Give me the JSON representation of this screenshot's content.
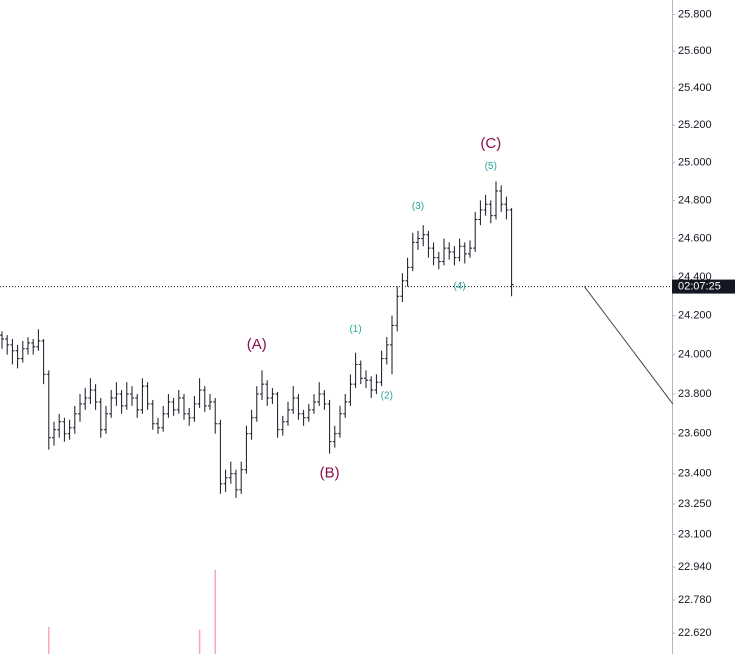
{
  "chart_data": {
    "type": "ohlc",
    "log_scale": true,
    "ylim": [
      22.52,
      25.88
    ],
    "yticks": [
      {
        "value": 25.8,
        "label": "25.800"
      },
      {
        "value": 25.6,
        "label": "25.600"
      },
      {
        "value": 25.4,
        "label": "25.400"
      },
      {
        "value": 25.2,
        "label": "25.200"
      },
      {
        "value": 25.0,
        "label": "25.000"
      },
      {
        "value": 24.8,
        "label": "24.800"
      },
      {
        "value": 24.6,
        "label": "24.600"
      },
      {
        "value": 24.4,
        "label": "24.400"
      },
      {
        "value": 24.2,
        "label": "24.200"
      },
      {
        "value": 24.0,
        "label": "24.000"
      },
      {
        "value": 23.8,
        "label": "23.800"
      },
      {
        "value": 23.6,
        "label": "23.600"
      },
      {
        "value": 23.4,
        "label": "23.400"
      },
      {
        "value": 23.25,
        "label": "23.250"
      },
      {
        "value": 23.1,
        "label": "23.100"
      },
      {
        "value": 22.94,
        "label": "22.940"
      },
      {
        "value": 22.78,
        "label": "22.780"
      },
      {
        "value": 22.62,
        "label": "22.620"
      }
    ],
    "color": "#131722",
    "ohlc": [
      [
        24.1,
        24.12,
        24.03,
        24.08
      ],
      [
        24.08,
        24.1,
        24.0,
        24.05
      ],
      [
        24.05,
        24.08,
        23.95,
        24.02
      ],
      [
        24.02,
        24.05,
        23.93,
        23.98
      ],
      [
        23.98,
        24.07,
        23.96,
        24.03
      ],
      [
        24.03,
        24.09,
        24.0,
        24.06
      ],
      [
        24.06,
        24.08,
        24.0,
        24.04
      ],
      [
        24.04,
        24.13,
        24.02,
        24.07
      ],
      [
        24.07,
        24.08,
        23.85,
        23.9
      ],
      [
        23.9,
        23.92,
        23.52,
        23.58
      ],
      [
        23.58,
        23.66,
        23.54,
        23.62
      ],
      [
        23.62,
        23.7,
        23.58,
        23.66
      ],
      [
        23.66,
        23.68,
        23.56,
        23.6
      ],
      [
        23.6,
        23.67,
        23.57,
        23.63
      ],
      [
        23.63,
        23.74,
        23.6,
        23.7
      ],
      [
        23.7,
        23.8,
        23.66,
        23.75
      ],
      [
        23.75,
        23.83,
        23.72,
        23.78
      ],
      [
        23.78,
        23.88,
        23.75,
        23.82
      ],
      [
        23.82,
        23.85,
        23.72,
        23.76
      ],
      [
        23.76,
        23.78,
        23.58,
        23.62
      ],
      [
        23.62,
        23.74,
        23.6,
        23.7
      ],
      [
        23.7,
        23.82,
        23.68,
        23.78
      ],
      [
        23.78,
        23.86,
        23.74,
        23.8
      ],
      [
        23.8,
        23.82,
        23.7,
        23.74
      ],
      [
        23.74,
        23.86,
        23.72,
        23.8
      ],
      [
        23.8,
        23.84,
        23.74,
        23.78
      ],
      [
        23.78,
        23.8,
        23.68,
        23.72
      ],
      [
        23.72,
        23.88,
        23.7,
        23.84
      ],
      [
        23.84,
        23.86,
        23.72,
        23.75
      ],
      [
        23.75,
        23.77,
        23.62,
        23.65
      ],
      [
        23.65,
        23.68,
        23.6,
        23.63
      ],
      [
        23.63,
        23.74,
        23.61,
        23.7
      ],
      [
        23.7,
        23.8,
        23.68,
        23.76
      ],
      [
        23.76,
        23.78,
        23.69,
        23.72
      ],
      [
        23.72,
        23.82,
        23.7,
        23.78
      ],
      [
        23.78,
        23.8,
        23.67,
        23.7
      ],
      [
        23.7,
        23.73,
        23.64,
        23.68
      ],
      [
        23.68,
        23.79,
        23.66,
        23.75
      ],
      [
        23.75,
        23.88,
        23.73,
        23.82
      ],
      [
        23.82,
        23.84,
        23.71,
        23.74
      ],
      [
        23.74,
        23.8,
        23.72,
        23.76
      ],
      [
        23.76,
        23.78,
        23.6,
        23.65
      ],
      [
        23.65,
        23.67,
        23.3,
        23.35
      ],
      [
        23.35,
        23.42,
        23.31,
        23.38
      ],
      [
        23.38,
        23.46,
        23.35,
        23.4
      ],
      [
        23.4,
        23.42,
        23.28,
        23.32
      ],
      [
        23.32,
        23.46,
        23.3,
        23.42
      ],
      [
        23.42,
        23.64,
        23.4,
        23.6
      ],
      [
        23.6,
        23.72,
        23.57,
        23.68
      ],
      [
        23.68,
        23.84,
        23.66,
        23.8
      ],
      [
        23.8,
        23.92,
        23.77,
        23.85
      ],
      [
        23.85,
        23.87,
        23.74,
        23.78
      ],
      [
        23.78,
        23.83,
        23.75,
        23.8
      ],
      [
        23.8,
        23.81,
        23.58,
        23.62
      ],
      [
        23.62,
        23.69,
        23.59,
        23.66
      ],
      [
        23.66,
        23.76,
        23.64,
        23.72
      ],
      [
        23.72,
        23.84,
        23.7,
        23.78
      ],
      [
        23.78,
        23.8,
        23.67,
        23.7
      ],
      [
        23.7,
        23.72,
        23.64,
        23.68
      ],
      [
        23.68,
        23.75,
        23.66,
        23.72
      ],
      [
        23.72,
        23.8,
        23.7,
        23.76
      ],
      [
        23.76,
        23.86,
        23.74,
        23.8
      ],
      [
        23.8,
        23.82,
        23.72,
        23.75
      ],
      [
        23.75,
        23.77,
        23.5,
        23.56
      ],
      [
        23.56,
        23.64,
        23.53,
        23.6
      ],
      [
        23.6,
        23.74,
        23.58,
        23.7
      ],
      [
        23.7,
        23.8,
        23.68,
        23.76
      ],
      [
        23.76,
        23.9,
        23.74,
        23.85
      ],
      [
        23.85,
        24.01,
        23.83,
        23.95
      ],
      [
        23.95,
        23.97,
        23.85,
        23.88
      ],
      [
        23.88,
        23.92,
        23.83,
        23.87
      ],
      [
        23.87,
        23.89,
        23.78,
        23.82
      ],
      [
        23.82,
        23.9,
        23.8,
        23.86
      ],
      [
        23.86,
        24.02,
        23.84,
        23.98
      ],
      [
        23.98,
        24.09,
        23.95,
        24.05
      ],
      [
        24.05,
        24.2,
        23.9,
        24.15
      ],
      [
        24.15,
        24.35,
        24.12,
        24.3
      ],
      [
        24.3,
        24.42,
        24.27,
        24.38
      ],
      [
        24.38,
        24.5,
        24.35,
        24.45
      ],
      [
        24.45,
        24.63,
        24.43,
        24.58
      ],
      [
        24.58,
        24.64,
        24.54,
        24.6
      ],
      [
        24.6,
        24.67,
        24.56,
        24.62
      ],
      [
        24.62,
        24.64,
        24.5,
        24.55
      ],
      [
        24.55,
        24.58,
        24.46,
        24.5
      ],
      [
        24.5,
        24.53,
        24.44,
        24.48
      ],
      [
        24.48,
        24.6,
        24.46,
        24.55
      ],
      [
        24.55,
        24.58,
        24.49,
        24.53
      ],
      [
        24.53,
        24.56,
        24.46,
        24.5
      ],
      [
        24.5,
        24.6,
        24.48,
        24.56
      ],
      [
        24.56,
        24.58,
        24.47,
        24.52
      ],
      [
        24.52,
        24.59,
        24.5,
        24.55
      ],
      [
        24.55,
        24.74,
        24.53,
        24.7
      ],
      [
        24.7,
        24.8,
        24.67,
        24.75
      ],
      [
        24.75,
        24.83,
        24.72,
        24.78
      ],
      [
        24.78,
        24.8,
        24.68,
        24.72
      ],
      [
        24.72,
        24.9,
        24.7,
        24.85
      ],
      [
        24.85,
        24.88,
        24.74,
        24.78
      ],
      [
        24.78,
        24.82,
        24.7,
        24.75
      ],
      [
        24.75,
        24.76,
        24.3,
        24.36
      ]
    ],
    "volume": {
      "color": "#f7a8b0",
      "lim": [
        0,
        700
      ],
      "bars": [
        9,
        38,
        41
      ],
      "values": [
        29,
        26,
        90
      ]
    },
    "current_price": 24.35,
    "countdown": "02:07:25",
    "projection": {
      "bars": [
        112,
        129
      ],
      "prices": [
        24.35,
        23.75
      ]
    },
    "annotations": [
      {
        "text": "(A)",
        "bar": 49,
        "price": 24.05,
        "color": "#880e4f"
      },
      {
        "text": "(B)",
        "bar": 63,
        "price": 23.4,
        "color": "#880e4f"
      },
      {
        "text": "(C)",
        "bar": 94,
        "price": 25.1,
        "color": "#880e4f"
      },
      {
        "text": "(1)",
        "bar": 68,
        "price": 24.13,
        "color": "#26a69a"
      },
      {
        "text": "(2)",
        "bar": 74,
        "price": 23.79,
        "color": "#26a69a"
      },
      {
        "text": "(3)",
        "bar": 80,
        "price": 24.77,
        "color": "#26a69a"
      },
      {
        "text": "(4)",
        "bar": 88,
        "price": 24.35,
        "color": "#26a69a"
      },
      {
        "text": "(5)",
        "bar": 94,
        "price": 24.98,
        "color": "#26a69a"
      }
    ]
  }
}
